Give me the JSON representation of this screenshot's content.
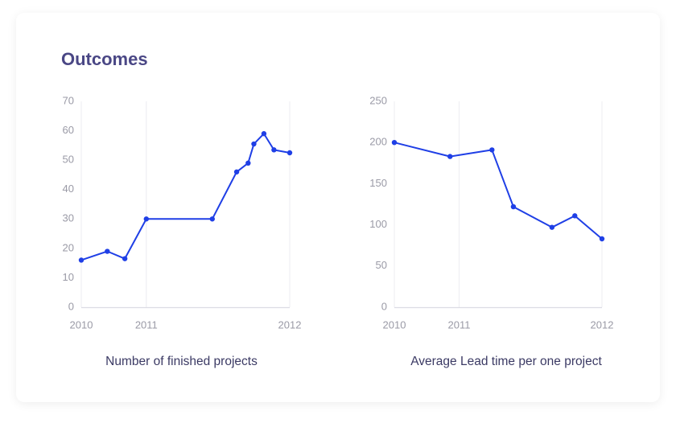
{
  "title": "Outcomes",
  "chart_data": [
    {
      "type": "line",
      "title": "Number of finished projects",
      "color": "#1f3fe6",
      "x": [
        2010,
        2010.4,
        2010.67,
        2011,
        2011.46,
        2011.63,
        2011.71,
        2011.75,
        2011.82,
        2011.89,
        2012
      ],
      "values": [
        16,
        19,
        16.5,
        30,
        30,
        46,
        49,
        55.5,
        59,
        53.5,
        52.5
      ],
      "xlim": [
        2010,
        2012
      ],
      "xticks": [
        2010,
        2011,
        2012
      ],
      "ylim": [
        0,
        70
      ],
      "yticks": [
        0,
        10,
        20,
        30,
        40,
        50,
        60,
        70
      ],
      "grid": true
    },
    {
      "type": "line",
      "title": "Average Lead time per one project",
      "color": "#1f3fe6",
      "x": [
        2010,
        2010.86,
        2011.23,
        2011.38,
        2011.65,
        2011.81,
        2012
      ],
      "values": [
        200,
        183,
        191,
        122,
        97,
        111,
        83
      ],
      "xlim": [
        2010,
        2012
      ],
      "xticks": [
        2010,
        2011,
        2012
      ],
      "ylim": [
        0,
        250
      ],
      "yticks": [
        0,
        50,
        100,
        150,
        200,
        250
      ],
      "grid": true
    }
  ]
}
